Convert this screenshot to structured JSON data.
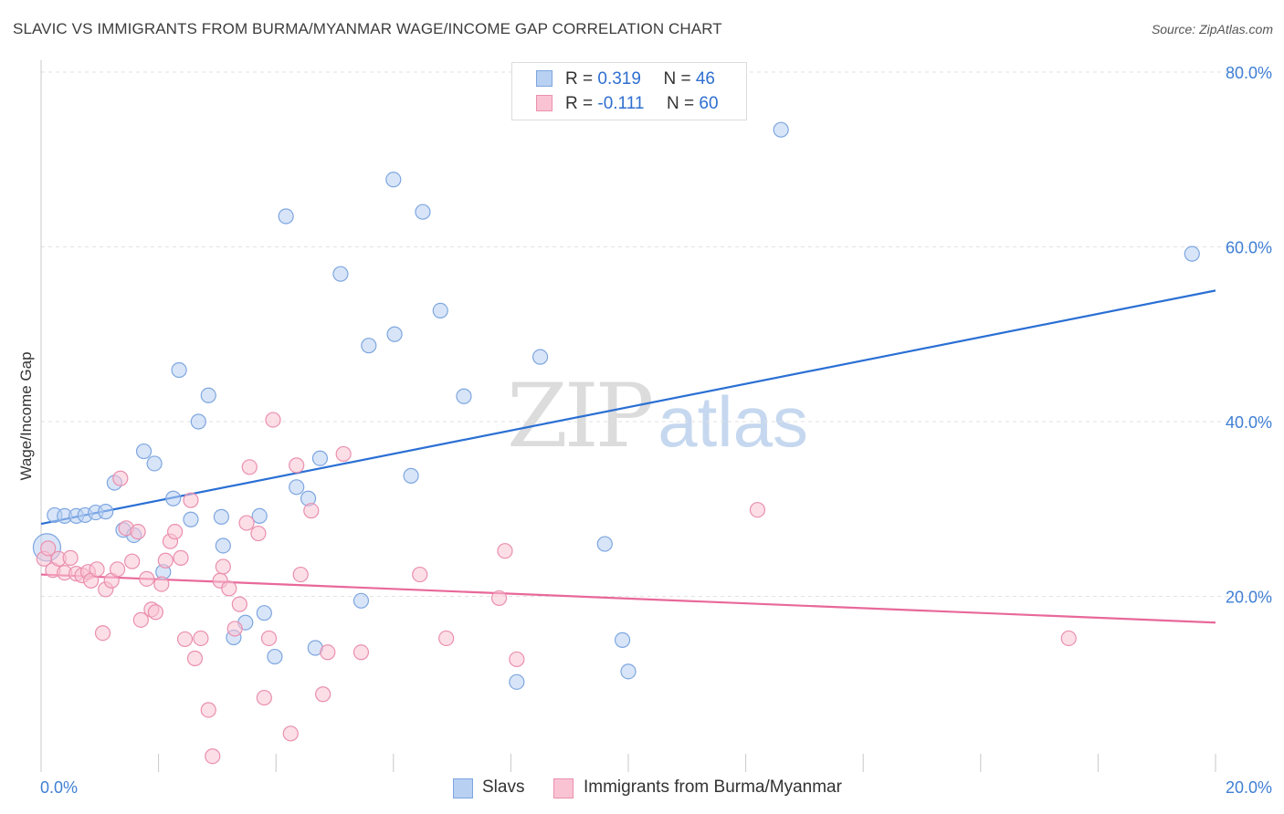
{
  "header": {
    "title": "SLAVIC VS IMMIGRANTS FROM BURMA/MYANMAR WAGE/INCOME GAP CORRELATION CHART",
    "source": "Source: ZipAtlas.com"
  },
  "watermark": {
    "zip": "ZIP",
    "atlas": "atlas"
  },
  "legend_top": {
    "rows": [
      {
        "r_label": "R = ",
        "r_value": "0.319",
        "n_label": "N = ",
        "n_value": "46"
      },
      {
        "r_label": "R = ",
        "r_value": "-0.111",
        "n_label": "N = ",
        "n_value": "60"
      }
    ]
  },
  "legend_bottom": {
    "series1": "Slavs",
    "series2": "Immigrants from Burma/Myanmar"
  },
  "colors": {
    "blue_fill": "#b8d0f2",
    "blue_stroke": "#7ea6e0",
    "blue_line": "#2a6fd4",
    "pink_fill": "#f9c3d4",
    "pink_stroke": "#ea8fae",
    "pink_line": "#e8689a",
    "grid": "#e2e2e2",
    "tick_label": "#3f7fd4"
  },
  "chart_data": {
    "type": "scatter",
    "title": "SLAVIC VS IMMIGRANTS FROM BURMA/MYANMAR WAGE/INCOME GAP CORRELATION CHART",
    "xlabel": "",
    "ylabel": "Wage/Income Gap",
    "xlim": [
      0,
      20
    ],
    "ylim": [
      0,
      80
    ],
    "x_tick_labels": [
      "0.0%",
      "20.0%"
    ],
    "y_ticks": [
      20,
      40,
      60,
      80
    ],
    "y_tick_labels": [
      "20.0%",
      "40.0%",
      "60.0%",
      "80.0%"
    ],
    "grid": true,
    "series": [
      {
        "name": "Slavs",
        "r": 0.319,
        "n": 46,
        "trend": {
          "x0": 0,
          "y0": 28.3,
          "x1": 20,
          "y1": 55.0
        },
        "points": [
          [
            0.1,
            25.6
          ],
          [
            0.23,
            29.3
          ],
          [
            0.4,
            29.2
          ],
          [
            0.6,
            29.2
          ],
          [
            0.75,
            29.3
          ],
          [
            0.93,
            29.6
          ],
          [
            1.1,
            29.7
          ],
          [
            1.25,
            33.0
          ],
          [
            1.4,
            27.6
          ],
          [
            1.58,
            27.0
          ],
          [
            1.75,
            36.6
          ],
          [
            1.93,
            35.2
          ],
          [
            2.08,
            22.8
          ],
          [
            2.25,
            31.2
          ],
          [
            2.35,
            45.9
          ],
          [
            2.55,
            28.8
          ],
          [
            2.68,
            40.0
          ],
          [
            2.85,
            43.0
          ],
          [
            3.07,
            29.1
          ],
          [
            3.1,
            25.8
          ],
          [
            3.28,
            15.3
          ],
          [
            3.48,
            17.0
          ],
          [
            3.72,
            29.2
          ],
          [
            3.8,
            18.1
          ],
          [
            3.98,
            13.1
          ],
          [
            4.17,
            63.5
          ],
          [
            4.35,
            32.5
          ],
          [
            4.55,
            31.2
          ],
          [
            4.67,
            14.1
          ],
          [
            4.75,
            35.8
          ],
          [
            5.1,
            56.9
          ],
          [
            5.45,
            19.5
          ],
          [
            5.58,
            48.7
          ],
          [
            6.0,
            67.7
          ],
          [
            6.02,
            50.0
          ],
          [
            6.3,
            33.8
          ],
          [
            6.5,
            64.0
          ],
          [
            6.8,
            52.7
          ],
          [
            7.2,
            42.9
          ],
          [
            8.1,
            10.2
          ],
          [
            8.5,
            47.4
          ],
          [
            9.6,
            26.0
          ],
          [
            9.9,
            15.0
          ],
          [
            10.0,
            11.4
          ],
          [
            12.6,
            73.4
          ],
          [
            19.6,
            59.2
          ]
        ]
      },
      {
        "name": "Immigrants from Burma/Myanmar",
        "r": -0.111,
        "n": 60,
        "trend": {
          "x0": 0,
          "y0": 22.5,
          "x1": 20,
          "y1": 17.0
        },
        "points": [
          [
            0.05,
            24.3
          ],
          [
            0.12,
            25.5
          ],
          [
            0.2,
            23.0
          ],
          [
            0.3,
            24.3
          ],
          [
            0.4,
            22.7
          ],
          [
            0.5,
            24.4
          ],
          [
            0.6,
            22.6
          ],
          [
            0.7,
            22.4
          ],
          [
            0.8,
            22.8
          ],
          [
            0.85,
            21.8
          ],
          [
            0.95,
            23.1
          ],
          [
            1.05,
            15.8
          ],
          [
            1.1,
            20.8
          ],
          [
            1.2,
            21.8
          ],
          [
            1.3,
            23.1
          ],
          [
            1.35,
            33.5
          ],
          [
            1.45,
            27.8
          ],
          [
            1.55,
            24.0
          ],
          [
            1.65,
            27.4
          ],
          [
            1.7,
            17.3
          ],
          [
            1.8,
            22.0
          ],
          [
            1.88,
            18.5
          ],
          [
            1.95,
            18.2
          ],
          [
            2.05,
            21.4
          ],
          [
            2.12,
            24.1
          ],
          [
            2.2,
            26.3
          ],
          [
            2.28,
            27.4
          ],
          [
            2.38,
            24.4
          ],
          [
            2.45,
            15.1
          ],
          [
            2.55,
            31.0
          ],
          [
            2.62,
            12.9
          ],
          [
            2.72,
            15.2
          ],
          [
            2.85,
            7.0
          ],
          [
            2.92,
            1.7
          ],
          [
            3.05,
            21.8
          ],
          [
            3.1,
            23.4
          ],
          [
            3.2,
            20.9
          ],
          [
            3.3,
            16.3
          ],
          [
            3.38,
            19.1
          ],
          [
            3.5,
            28.4
          ],
          [
            3.55,
            34.8
          ],
          [
            3.7,
            27.2
          ],
          [
            3.8,
            8.4
          ],
          [
            3.88,
            15.2
          ],
          [
            3.95,
            40.2
          ],
          [
            4.25,
            4.3
          ],
          [
            4.35,
            35.0
          ],
          [
            4.42,
            22.5
          ],
          [
            4.6,
            29.8
          ],
          [
            4.8,
            8.8
          ],
          [
            4.88,
            13.6
          ],
          [
            5.15,
            36.3
          ],
          [
            5.45,
            13.6
          ],
          [
            6.45,
            22.5
          ],
          [
            6.9,
            15.2
          ],
          [
            7.8,
            19.8
          ],
          [
            7.9,
            25.2
          ],
          [
            8.1,
            12.8
          ],
          [
            12.2,
            29.9
          ],
          [
            17.5,
            15.2
          ]
        ]
      }
    ]
  }
}
